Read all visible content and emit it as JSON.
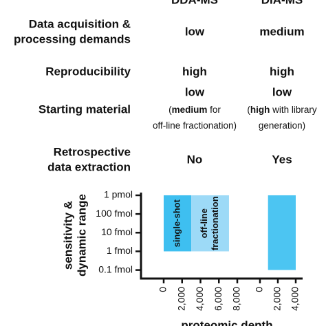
{
  "header": {
    "columns": [
      "DDA-MS",
      "DIA-MS"
    ]
  },
  "table": {
    "rows": [
      {
        "label": [
          "Data acquisition &",
          "processing demands"
        ],
        "cells": [
          {
            "value": "low"
          },
          {
            "value": "medium"
          }
        ]
      },
      {
        "label": [
          "Reproducibility"
        ],
        "cells": [
          {
            "value": "high"
          },
          {
            "value": "high"
          }
        ]
      },
      {
        "label": [
          "Starting material"
        ],
        "cells": [
          {
            "value": "low",
            "note": [
              [
                {
                  "text": "(",
                  "bold": false
                },
                {
                  "text": "medium",
                  "bold": true
                },
                {
                  "text": " for",
                  "bold": false
                }
              ],
              [
                {
                  "text": "off-line fractionation)",
                  "bold": false
                }
              ]
            ]
          },
          {
            "value": "low",
            "note": [
              [
                {
                  "text": "(",
                  "bold": false
                },
                {
                  "text": "high",
                  "bold": true
                },
                {
                  "text": " with library",
                  "bold": false
                }
              ],
              [
                {
                  "text": "generation)",
                  "bold": false
                }
              ]
            ]
          }
        ]
      },
      {
        "label": [
          "Retrospective",
          "data extraction"
        ],
        "cells": [
          {
            "value": "No"
          },
          {
            "value": "Yes"
          }
        ]
      }
    ]
  },
  "chart_data": {
    "type": "range-bar",
    "ylabel": [
      "sensitivity &",
      "dynamic range"
    ],
    "xlabel": "proteomic depth",
    "log_y": true,
    "ylim": [
      0.035,
      1400
    ],
    "yticks": [
      {
        "value": 1000,
        "label": "1 pmol"
      },
      {
        "value": 100,
        "label": "100 fmol"
      },
      {
        "value": 10,
        "label": "10 fmol"
      },
      {
        "value": 1,
        "label": "1 fmol"
      },
      {
        "value": 0.1,
        "label": "0.1 fmol"
      }
    ],
    "groups": [
      {
        "xlim": [
          0,
          8000
        ],
        "xticks": [
          0,
          {
            "value": 2000,
            "label": "2,000"
          },
          {
            "value": 4000,
            "label": "4,000"
          },
          {
            "value": 6000,
            "label": "6,000"
          },
          {
            "value": 8000,
            "label": "8,000"
          }
        ],
        "bars": [
          {
            "label": [
              "single-shot"
            ],
            "color": "#3ebff0",
            "x": [
              0,
              3000
            ],
            "y": [
              1,
              1000
            ]
          },
          {
            "label": [
              "off-line",
              "fractionation"
            ],
            "color": "#9ddaf7",
            "x": [
              3000,
              7100
            ],
            "y": [
              1,
              1000
            ]
          }
        ]
      },
      {
        "xlim": [
          0,
          4000
        ],
        "xticks": [
          0,
          {
            "value": 2000,
            "label": "2,000"
          },
          {
            "value": 4000,
            "label": "4,000"
          }
        ],
        "bars": [
          {
            "color": "#4cc5f2",
            "x": [
              900,
              4000
            ],
            "y": [
              0.1,
              1000
            ]
          }
        ]
      }
    ]
  }
}
